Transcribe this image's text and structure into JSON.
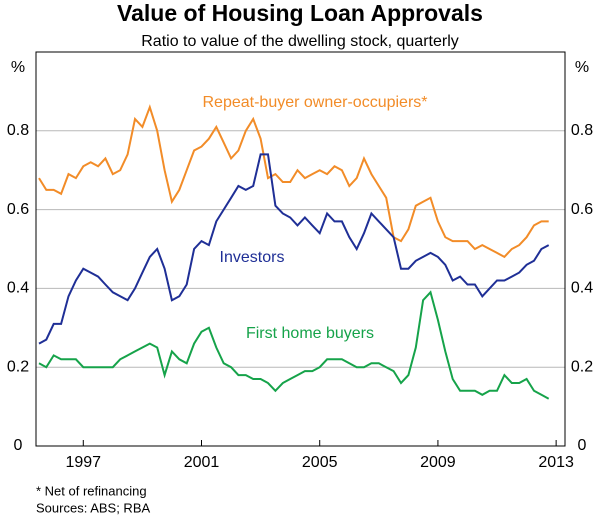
{
  "chart_data": {
    "type": "line",
    "title": "Value of Housing Loan Approvals",
    "subtitle": "Ratio to value of the dwelling stock, quarterly",
    "y_label": "%",
    "footnote": "*   Net of refinancing",
    "source": "Sources: ABS; RBA",
    "xlim": [
      1995.4,
      2013.3
    ],
    "xticks": [
      1997,
      2001,
      2005,
      2009,
      2013
    ],
    "ylim": [
      0,
      1
    ],
    "yticks": [
      0,
      0.2,
      0.4,
      0.6,
      0.8
    ],
    "grid": true,
    "x": [
      1995.5,
      1995.75,
      1996,
      1996.25,
      1996.5,
      1996.75,
      1997,
      1997.25,
      1997.5,
      1997.75,
      1998,
      1998.25,
      1998.5,
      1998.75,
      1999,
      1999.25,
      1999.5,
      1999.75,
      2000,
      2000.25,
      2000.5,
      2000.75,
      2001,
      2001.25,
      2001.5,
      2001.75,
      2002,
      2002.25,
      2002.5,
      2002.75,
      2003,
      2003.25,
      2003.5,
      2003.75,
      2004,
      2004.25,
      2004.5,
      2004.75,
      2005,
      2005.25,
      2005.5,
      2005.75,
      2006,
      2006.25,
      2006.5,
      2006.75,
      2007,
      2007.25,
      2007.5,
      2007.75,
      2008,
      2008.25,
      2008.5,
      2008.75,
      2009,
      2009.25,
      2009.5,
      2009.75,
      2010,
      2010.25,
      2010.5,
      2010.75,
      2011,
      2011.25,
      2011.5,
      2011.75,
      2012,
      2012.25,
      2012.5,
      2012.75
    ],
    "series": [
      {
        "name": "Repeat-buyer owner-occupiers*",
        "color": "#f28c28",
        "values": [
          0.68,
          0.65,
          0.65,
          0.64,
          0.69,
          0.68,
          0.71,
          0.72,
          0.71,
          0.73,
          0.69,
          0.7,
          0.74,
          0.83,
          0.81,
          0.86,
          0.8,
          0.7,
          0.62,
          0.65,
          0.7,
          0.75,
          0.76,
          0.78,
          0.81,
          0.77,
          0.73,
          0.75,
          0.8,
          0.83,
          0.78,
          0.68,
          0.69,
          0.67,
          0.67,
          0.7,
          0.68,
          0.69,
          0.7,
          0.69,
          0.71,
          0.7,
          0.66,
          0.68,
          0.73,
          0.69,
          0.66,
          0.63,
          0.53,
          0.52,
          0.55,
          0.61,
          0.62,
          0.63,
          0.57,
          0.53,
          0.52,
          0.52,
          0.52,
          0.5,
          0.51,
          0.5,
          0.49,
          0.48,
          0.5,
          0.51,
          0.53,
          0.56,
          0.57,
          0.57
        ]
      },
      {
        "name": "Investors",
        "color": "#1f2f96",
        "values": [
          0.26,
          0.27,
          0.31,
          0.31,
          0.38,
          0.42,
          0.45,
          0.44,
          0.43,
          0.41,
          0.39,
          0.38,
          0.37,
          0.4,
          0.44,
          0.48,
          0.5,
          0.45,
          0.37,
          0.38,
          0.41,
          0.5,
          0.52,
          0.51,
          0.57,
          0.6,
          0.63,
          0.66,
          0.65,
          0.66,
          0.74,
          0.74,
          0.61,
          0.59,
          0.58,
          0.56,
          0.58,
          0.56,
          0.54,
          0.59,
          0.57,
          0.57,
          0.53,
          0.5,
          0.54,
          0.59,
          0.57,
          0.55,
          0.53,
          0.45,
          0.45,
          0.47,
          0.48,
          0.49,
          0.48,
          0.46,
          0.42,
          0.43,
          0.41,
          0.41,
          0.38,
          0.4,
          0.42,
          0.42,
          0.43,
          0.44,
          0.46,
          0.47,
          0.5,
          0.51
        ]
      },
      {
        "name": "First home buyers",
        "color": "#16a34a",
        "values": [
          0.21,
          0.2,
          0.23,
          0.22,
          0.22,
          0.22,
          0.2,
          0.2,
          0.2,
          0.2,
          0.2,
          0.22,
          0.23,
          0.24,
          0.25,
          0.26,
          0.25,
          0.18,
          0.24,
          0.22,
          0.21,
          0.26,
          0.29,
          0.3,
          0.25,
          0.21,
          0.2,
          0.18,
          0.18,
          0.17,
          0.17,
          0.16,
          0.14,
          0.16,
          0.17,
          0.18,
          0.19,
          0.19,
          0.2,
          0.22,
          0.22,
          0.22,
          0.21,
          0.2,
          0.2,
          0.21,
          0.21,
          0.2,
          0.19,
          0.16,
          0.18,
          0.25,
          0.37,
          0.39,
          0.32,
          0.24,
          0.17,
          0.14,
          0.14,
          0.14,
          0.13,
          0.14,
          0.14,
          0.18,
          0.16,
          0.16,
          0.17,
          0.14,
          0.13,
          0.12
        ]
      }
    ]
  }
}
